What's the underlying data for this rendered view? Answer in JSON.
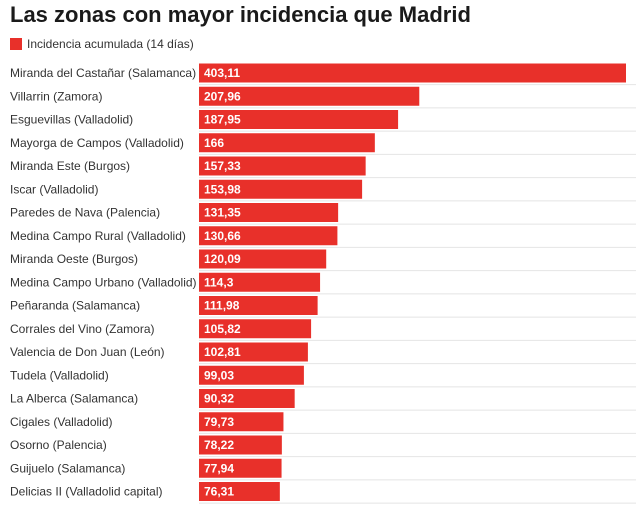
{
  "chart_data": {
    "type": "bar",
    "orientation": "horizontal",
    "title": "Las zonas con mayor incidencia que Madrid",
    "legend": [
      {
        "label": "Incidencia acumulada (14 días)",
        "color": "#e8302a"
      }
    ],
    "bar_color": "#e8302a",
    "categories": [
      "Miranda del Castañar (Salamanca)",
      "Villarrin (Zamora)",
      "Esguevillas (Valladolid)",
      "Mayorga de Campos (Valladolid)",
      "Miranda Este (Burgos)",
      "Iscar (Valladolid)",
      "Paredes de Nava (Palencia)",
      "Medina Campo Rural (Valladolid)",
      "Miranda Oeste (Burgos)",
      "Medina Campo Urbano (Valladolid)",
      "Peñaranda (Salamanca)",
      "Corrales del Vino (Zamora)",
      "Valencia de Don Juan (León)",
      "Tudela (Valladolid)",
      "La Alberca (Salamanca)",
      "Cigales (Valladolid)",
      "Osorno (Palencia)",
      "Guijuelo (Salamanca)",
      "Delicias II (Valladolid capital)"
    ],
    "values": [
      403.11,
      207.96,
      187.95,
      166,
      157.33,
      153.98,
      131.35,
      130.66,
      120.09,
      114.3,
      111.98,
      105.82,
      102.81,
      99.03,
      90.32,
      79.73,
      78.22,
      77.94,
      76.31
    ],
    "value_labels": [
      "403,11",
      "207,96",
      "187,95",
      "166",
      "157,33",
      "153,98",
      "131,35",
      "130,66",
      "120,09",
      "114,3",
      "111,98",
      "105,82",
      "102,81",
      "99,03",
      "90,32",
      "79,73",
      "78,22",
      "77,94",
      "76,31"
    ],
    "xlim": [
      0,
      403.11
    ],
    "xlabel": "",
    "ylabel": ""
  }
}
